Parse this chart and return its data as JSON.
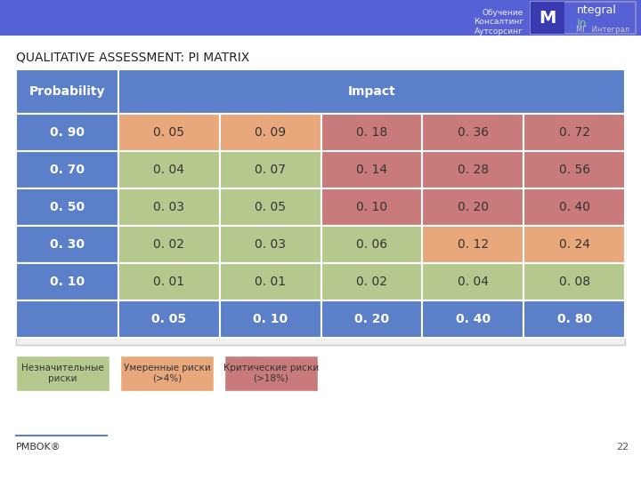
{
  "title": "QUALITATIVE ASSESSMENT: PI MATRIX",
  "header_bg": "#5b7fc9",
  "header_text_color": "#ffffff",
  "prob_col_label": "Probability",
  "impact_label": "Impact",
  "prob_values": [
    "0. 90",
    "0. 70",
    "0. 50",
    "0. 30",
    "0. 10"
  ],
  "impact_values": [
    "0. 05",
    "0. 10",
    "0. 20",
    "0. 40",
    "0. 80"
  ],
  "matrix_values": [
    [
      "0. 05",
      "0. 09",
      "0. 18",
      "0. 36",
      "0. 72"
    ],
    [
      "0. 04",
      "0. 07",
      "0. 14",
      "0. 28",
      "0. 56"
    ],
    [
      "0. 03",
      "0. 05",
      "0. 10",
      "0. 20",
      "0. 40"
    ],
    [
      "0. 02",
      "0. 03",
      "0. 06",
      "0. 12",
      "0. 24"
    ],
    [
      "0. 01",
      "0. 01",
      "0. 02",
      "0. 04",
      "0. 08"
    ]
  ],
  "cell_colors": [
    [
      "#e8a87c",
      "#e8a87c",
      "#c97b7b",
      "#c97b7b",
      "#c97b7b"
    ],
    [
      "#b5c98e",
      "#b5c98e",
      "#c97b7b",
      "#c97b7b",
      "#c97b7b"
    ],
    [
      "#b5c98e",
      "#b5c98e",
      "#c97b7b",
      "#c97b7b",
      "#c97b7b"
    ],
    [
      "#b5c98e",
      "#b5c98e",
      "#b5c98e",
      "#e8a87c",
      "#e8a87c"
    ],
    [
      "#b5c98e",
      "#b5c98e",
      "#b5c98e",
      "#b5c98e",
      "#b5c98e"
    ]
  ],
  "impact_row_bg": "#5b7fc9",
  "impact_row_text": "#ffffff",
  "bg_color": "#ffffff",
  "table_outer_bg": "#f0f0ee",
  "legend_items": [
    {
      "label": "Незначительные\nриски",
      "color": "#b5c98e"
    },
    {
      "label": "Умеренные риски\n(>4%)",
      "color": "#e8a87c"
    },
    {
      "label": "Критические риски\n(>18%)",
      "color": "#c97b7b"
    }
  ],
  "footer_text": "PMBOK®",
  "page_number": "22",
  "top_stripe_color": "#5561d4",
  "logo_text_color": "#dddddd",
  "logo_box_color": "#5561d4"
}
